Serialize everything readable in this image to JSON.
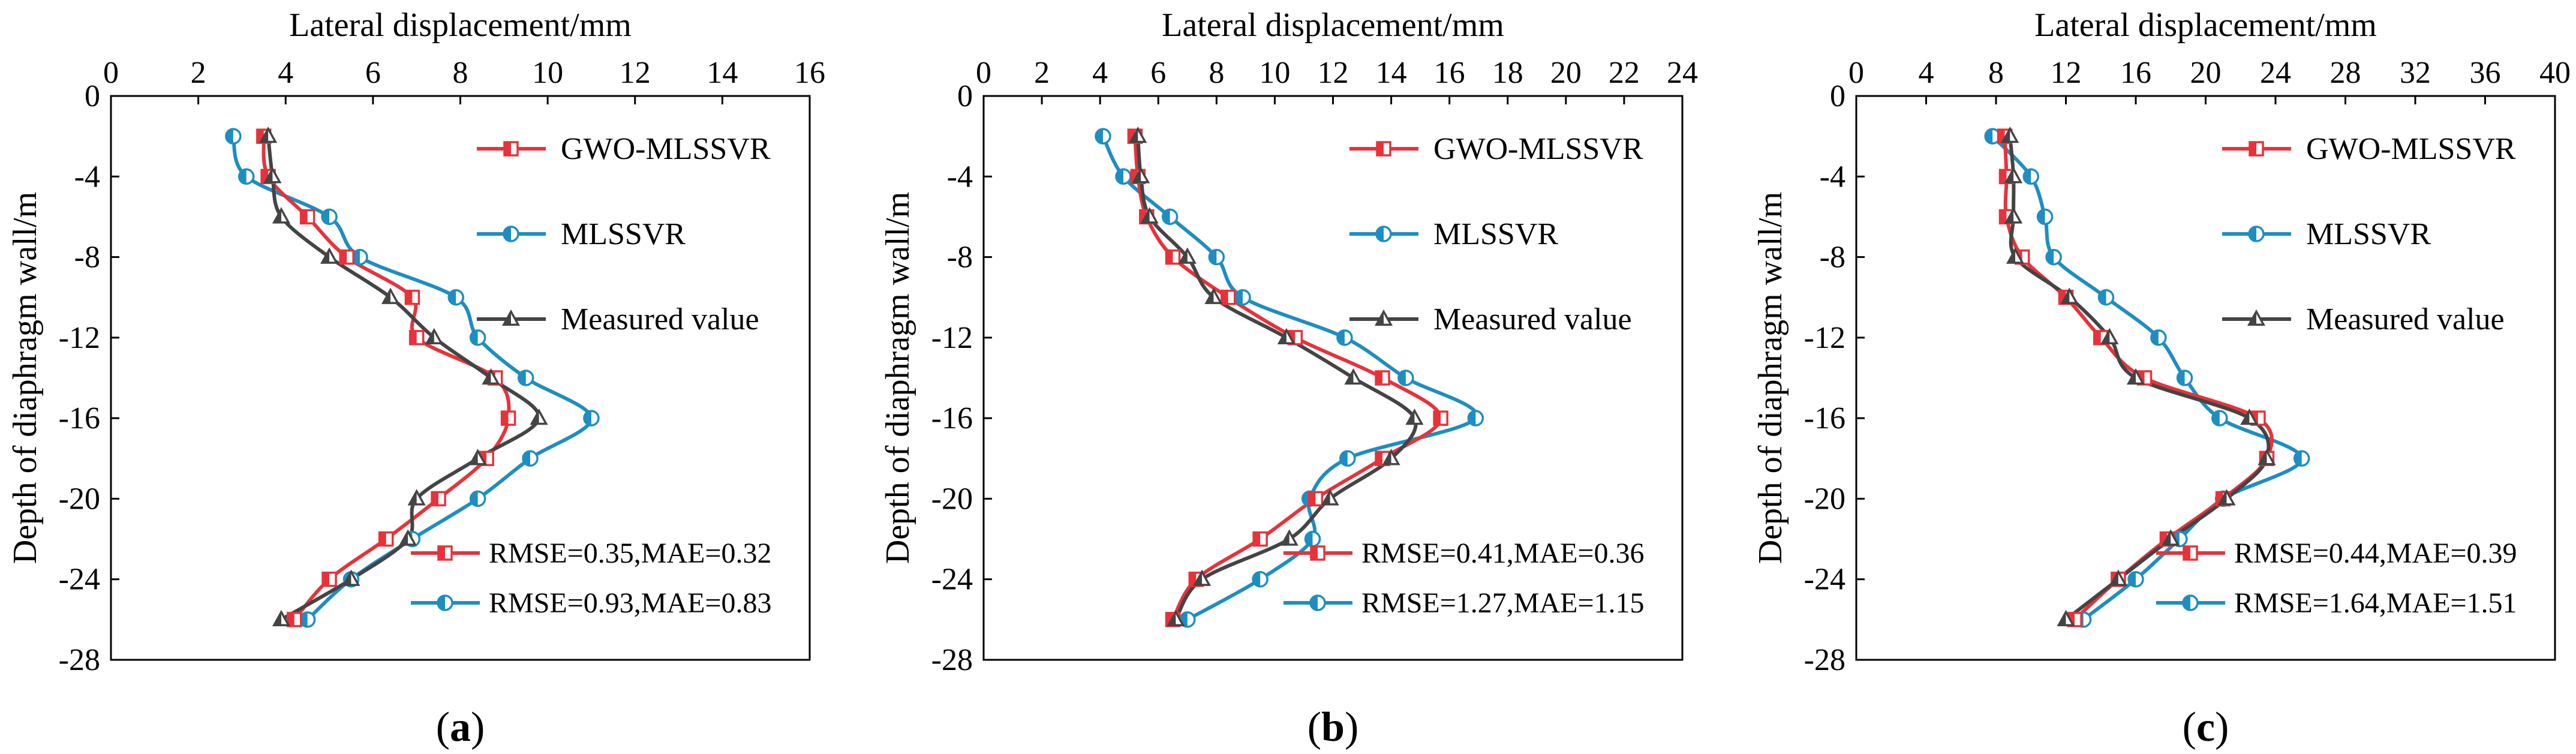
{
  "colors": {
    "gwo": "#E8323A",
    "mls": "#1E8EC1",
    "measured": "#444444",
    "axis": "#000000"
  },
  "chart_data": [
    {
      "type": "line",
      "panel_label": "a",
      "xlabel": "Lateral displacement/mm",
      "ylabel": "Depth of diaphragm wall/m",
      "xlim": [
        0,
        16
      ],
      "xticks": [
        0,
        2,
        4,
        6,
        8,
        10,
        12,
        14,
        16
      ],
      "ylim": [
        -28,
        0
      ],
      "yticks": [
        0,
        -4,
        -8,
        -12,
        -16,
        -20,
        -24,
        -28
      ],
      "x_axis_position": "top",
      "y": [
        -2,
        -4,
        -6,
        -8,
        -10,
        -12,
        -14,
        -16,
        -18,
        -20,
        -22,
        -24,
        -26
      ],
      "series": [
        {
          "name": "GWO-MLSSVR",
          "color_key": "gwo",
          "marker": "square",
          "x": [
            3.5,
            3.6,
            4.5,
            5.4,
            6.9,
            7.0,
            8.8,
            9.1,
            8.6,
            7.5,
            6.3,
            5.0,
            4.2
          ]
        },
        {
          "name": "MLSSVR",
          "color_key": "mls",
          "marker": "circle",
          "x": [
            2.8,
            3.1,
            5.0,
            5.7,
            7.9,
            8.4,
            9.5,
            11.0,
            9.6,
            8.4,
            6.9,
            5.5,
            4.5
          ]
        },
        {
          "name": "Measured value",
          "color_key": "measured",
          "marker": "triangle",
          "x": [
            3.6,
            3.7,
            3.9,
            5.0,
            6.4,
            7.4,
            8.7,
            9.8,
            8.4,
            7.0,
            6.8,
            5.5,
            3.9
          ]
        }
      ],
      "legend": [
        "GWO-MLSSVR",
        "MLSSVR",
        "Measured value"
      ],
      "metrics": [
        {
          "series": "GWO-MLSSVR",
          "text": "RMSE=0.35,MAE=0.32"
        },
        {
          "series": "MLSSVR",
          "text": "RMSE=0.93,MAE=0.83"
        }
      ]
    },
    {
      "type": "line",
      "panel_label": "b",
      "xlabel": "Lateral displacement/mm",
      "ylabel": "Depth of diaphragm wall/m",
      "xlim": [
        0,
        24
      ],
      "xticks": [
        0,
        2,
        4,
        6,
        8,
        10,
        12,
        14,
        16,
        18,
        20,
        22,
        24
      ],
      "ylim": [
        -28,
        0
      ],
      "yticks": [
        0,
        -4,
        -8,
        -12,
        -16,
        -20,
        -24,
        -28
      ],
      "x_axis_position": "top",
      "y": [
        -2,
        -4,
        -6,
        -8,
        -10,
        -12,
        -14,
        -16,
        -18,
        -20,
        -22,
        -24,
        -26
      ],
      "series": [
        {
          "name": "GWO-MLSSVR",
          "color_key": "gwo",
          "marker": "square",
          "x": [
            5.2,
            5.3,
            5.6,
            6.5,
            8.4,
            10.7,
            13.7,
            15.7,
            13.7,
            11.4,
            9.5,
            7.3,
            6.5
          ]
        },
        {
          "name": "MLSSVR",
          "color_key": "mls",
          "marker": "circle",
          "x": [
            4.1,
            4.8,
            6.4,
            8.0,
            8.9,
            12.4,
            14.5,
            16.9,
            12.5,
            11.2,
            11.3,
            9.5,
            7.0
          ]
        },
        {
          "name": "Measured value",
          "color_key": "measured",
          "marker": "triangle",
          "x": [
            5.3,
            5.4,
            5.7,
            7.0,
            7.9,
            10.4,
            12.7,
            14.8,
            14.0,
            11.9,
            10.5,
            7.5,
            6.6
          ]
        }
      ],
      "legend": [
        "GWO-MLSSVR",
        "MLSSVR",
        "Measured value"
      ],
      "metrics": [
        {
          "series": "GWO-MLSSVR",
          "text": "RMSE=0.41,MAE=0.36"
        },
        {
          "series": "MLSSVR",
          "text": "RMSE=1.27,MAE=1.15"
        }
      ]
    },
    {
      "type": "line",
      "panel_label": "c",
      "xlabel": "Lateral displacement/mm",
      "ylabel": "Depth of diaphragm wall/m",
      "xlim": [
        0,
        40
      ],
      "xticks": [
        0,
        4,
        8,
        12,
        16,
        20,
        24,
        28,
        32,
        36,
        40
      ],
      "ylim": [
        -28,
        0
      ],
      "yticks": [
        0,
        -4,
        -8,
        -12,
        -16,
        -20,
        -24,
        -28
      ],
      "x_axis_position": "top",
      "y": [
        -2,
        -4,
        -6,
        -8,
        -10,
        -12,
        -14,
        -16,
        -18,
        -20,
        -22,
        -24,
        -26
      ],
      "series": [
        {
          "name": "GWO-MLSSVR",
          "color_key": "gwo",
          "marker": "square",
          "x": [
            8.5,
            8.6,
            8.6,
            9.5,
            12.0,
            14.0,
            16.5,
            23.0,
            23.5,
            21.0,
            17.8,
            15.0,
            12.5
          ]
        },
        {
          "name": "MLSSVR",
          "color_key": "mls",
          "marker": "circle",
          "x": [
            7.8,
            10.0,
            10.8,
            11.3,
            14.3,
            17.3,
            18.8,
            20.8,
            25.5,
            21.0,
            18.5,
            16.0,
            13.0
          ]
        },
        {
          "name": "Measured value",
          "color_key": "measured",
          "marker": "triangle",
          "x": [
            8.8,
            9.0,
            9.0,
            9.1,
            12.2,
            14.5,
            16.0,
            22.5,
            23.5,
            21.2,
            18.0,
            15.0,
            12.0
          ]
        }
      ],
      "legend": [
        "GWO-MLSSVR",
        "MLSSVR",
        "Measured value"
      ],
      "metrics": [
        {
          "series": "GWO-MLSSVR",
          "text": "RMSE=0.44,MAE=0.39"
        },
        {
          "series": "MLSSVR",
          "text": "RMSE=1.64,MAE=1.51"
        }
      ]
    }
  ]
}
